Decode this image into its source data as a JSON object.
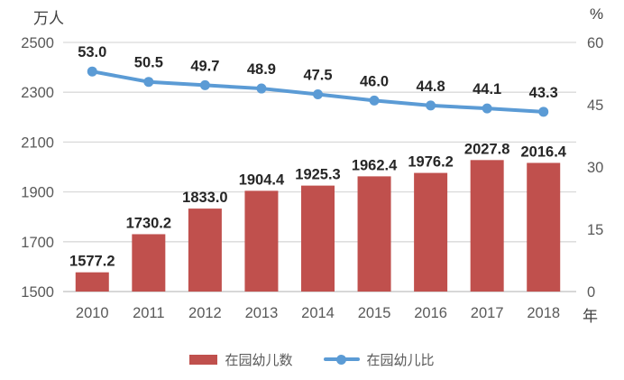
{
  "chart_data": {
    "type": "combo-bar-line",
    "categories": [
      "2010",
      "2011",
      "2012",
      "2013",
      "2014",
      "2015",
      "2016",
      "2017",
      "2018"
    ],
    "series": [
      {
        "name": "在园幼儿数",
        "type": "bar",
        "axis": "left",
        "color": "#C0504D",
        "values": [
          1577.2,
          1730.2,
          1833.0,
          1904.4,
          1925.3,
          1962.4,
          1976.2,
          2027.8,
          2016.4
        ]
      },
      {
        "name": "在园幼儿比",
        "type": "line",
        "axis": "right",
        "color": "#5B9BD5",
        "values": [
          53.0,
          50.5,
          49.7,
          48.9,
          47.5,
          46.0,
          44.8,
          44.1,
          43.3
        ]
      }
    ],
    "left_axis": {
      "unit": "万人",
      "min": 1500,
      "max": 2500,
      "ticks": [
        1500,
        1700,
        1900,
        2100,
        2300,
        2500
      ]
    },
    "right_axis": {
      "unit": "%",
      "min": 0,
      "max": 60,
      "ticks": [
        0,
        15,
        30,
        45,
        60
      ]
    },
    "x_axis": {
      "unit": "年"
    },
    "grid": true,
    "legend_position": "bottom",
    "colors": {
      "background": "#FFFFFF",
      "grid": "#D9D9D9",
      "axis_line": "#BFBFBF",
      "tick_label": "#595959",
      "data_label": "#262626"
    }
  }
}
